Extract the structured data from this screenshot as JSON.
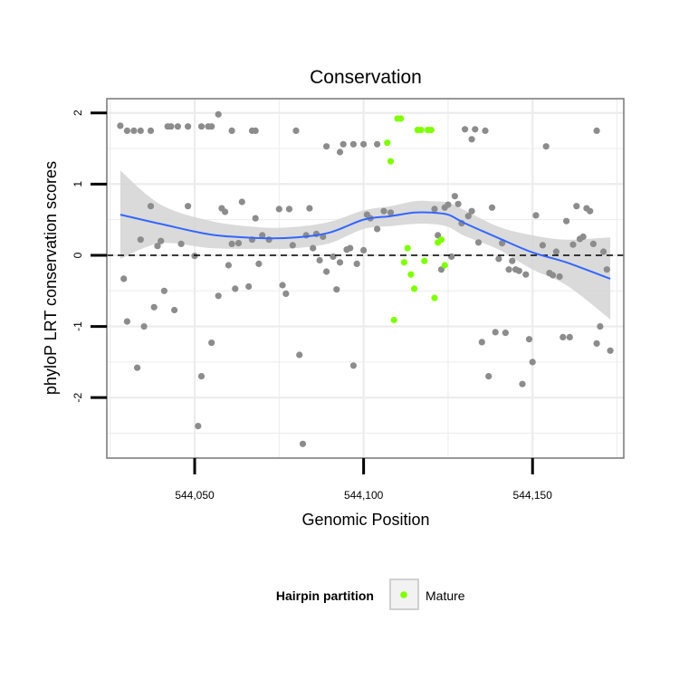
{
  "chart_data": {
    "type": "scatter",
    "title": "Conservation",
    "xlabel": "Genomic Position",
    "ylabel": "phyloP LRT conservation scores",
    "xlim": [
      544024,
      544177
    ],
    "ylim": [
      -2.85,
      2.2
    ],
    "x_ticks": [
      544050,
      544100,
      544150
    ],
    "x_tick_labels": [
      "544,050",
      "544,100",
      "544,150"
    ],
    "y_ticks": [
      -2,
      -1,
      0,
      1,
      2
    ],
    "y_tick_labels": [
      "-2",
      "-1",
      "0",
      "1",
      "2"
    ],
    "grid": true,
    "reference_line": {
      "y": 0,
      "style": "dashed",
      "color": "#000000"
    },
    "legend": {
      "title": "Hairpin partition",
      "placement": "bottom",
      "entries": [
        {
          "label": "Mature",
          "color": "#7fff00"
        }
      ]
    },
    "colors": {
      "other": "#8c8c8c",
      "mature": "#7fff00",
      "smooth": "#3366ff",
      "ribbon": "#d3d3d3",
      "panel_grid": "#ececec"
    },
    "series": [
      {
        "name": "",
        "color": "#8c8c8c",
        "points": [
          [
            544028,
            1.82
          ],
          [
            544030,
            1.75
          ],
          [
            544032,
            1.75
          ],
          [
            544034,
            1.75
          ],
          [
            544037,
            1.75
          ],
          [
            544042,
            1.81
          ],
          [
            544043,
            1.81
          ],
          [
            544045,
            1.81
          ],
          [
            544048,
            1.81
          ],
          [
            544052,
            1.81
          ],
          [
            544054,
            1.81
          ],
          [
            544055,
            1.81
          ],
          [
            544057,
            1.98
          ],
          [
            544061,
            1.75
          ],
          [
            544067,
            1.75
          ],
          [
            544068,
            1.75
          ],
          [
            544080,
            1.75
          ],
          [
            544089,
            1.53
          ],
          [
            544093,
            1.45
          ],
          [
            544094,
            1.56
          ],
          [
            544097,
            1.56
          ],
          [
            544100,
            1.56
          ],
          [
            544104,
            1.56
          ],
          [
            544130,
            1.77
          ],
          [
            544132,
            1.63
          ],
          [
            544133,
            1.77
          ],
          [
            544136,
            1.75
          ],
          [
            544154,
            1.53
          ],
          [
            544169,
            1.75
          ],
          [
            544029,
            -0.33
          ],
          [
            544030,
            -0.93
          ],
          [
            544033,
            -1.58
          ],
          [
            544034,
            0.22
          ],
          [
            544035,
            -1.0
          ],
          [
            544037,
            0.69
          ],
          [
            544038,
            -0.73
          ],
          [
            544039,
            0.13
          ],
          [
            544040,
            0.2
          ],
          [
            544041,
            -0.5
          ],
          [
            544044,
            -0.77
          ],
          [
            544046,
            0.16
          ],
          [
            544048,
            0.69
          ],
          [
            544050,
            -0.01
          ],
          [
            544051,
            -2.4
          ],
          [
            544052,
            -1.7
          ],
          [
            544055,
            -1.23
          ],
          [
            544057,
            -0.57
          ],
          [
            544058,
            0.66
          ],
          [
            544059,
            0.61
          ],
          [
            544060,
            -0.14
          ],
          [
            544061,
            0.16
          ],
          [
            544062,
            -0.47
          ],
          [
            544063,
            0.17
          ],
          [
            544064,
            0.75
          ],
          [
            544066,
            -0.44
          ],
          [
            544067,
            0.22
          ],
          [
            544068,
            0.52
          ],
          [
            544069,
            -0.12
          ],
          [
            544070,
            0.28
          ],
          [
            544072,
            0.22
          ],
          [
            544075,
            0.65
          ],
          [
            544076,
            -0.42
          ],
          [
            544077,
            -0.54
          ],
          [
            544078,
            0.65
          ],
          [
            544079,
            0.14
          ],
          [
            544081,
            -1.4
          ],
          [
            544082,
            -2.65
          ],
          [
            544083,
            0.28
          ],
          [
            544084,
            0.66
          ],
          [
            544085,
            0.1
          ],
          [
            544086,
            0.3
          ],
          [
            544087,
            -0.07
          ],
          [
            544088,
            0.26
          ],
          [
            544089,
            -0.23
          ],
          [
            544091,
            -0.02
          ],
          [
            544092,
            -0.48
          ],
          [
            544093,
            -0.1
          ],
          [
            544095,
            0.08
          ],
          [
            544096,
            0.1
          ],
          [
            544097,
            -1.55
          ],
          [
            544098,
            -0.12
          ],
          [
            544100,
            0.07
          ],
          [
            544101,
            0.57
          ],
          [
            544102,
            0.52
          ],
          [
            544104,
            0.37
          ],
          [
            544106,
            0.62
          ],
          [
            544108,
            0.6
          ],
          [
            544121,
            0.65
          ],
          [
            544122,
            0.28
          ],
          [
            544123,
            -0.2
          ],
          [
            544124,
            0.67
          ],
          [
            544125,
            0.71
          ],
          [
            544126,
            -0.02
          ],
          [
            544127,
            0.83
          ],
          [
            544128,
            0.72
          ],
          [
            544129,
            0.45
          ],
          [
            544131,
            0.55
          ],
          [
            544132,
            0.62
          ],
          [
            544134,
            0.18
          ],
          [
            544135,
            -1.22
          ],
          [
            544137,
            -1.7
          ],
          [
            544138,
            0.67
          ],
          [
            544139,
            -1.08
          ],
          [
            544140,
            -0.05
          ],
          [
            544141,
            0.17
          ],
          [
            544142,
            -1.09
          ],
          [
            544143,
            -0.2
          ],
          [
            544144,
            -0.08
          ],
          [
            544145,
            -0.2
          ],
          [
            544146,
            -0.22
          ],
          [
            544147,
            -1.81
          ],
          [
            544148,
            -0.27
          ],
          [
            544149,
            -1.18
          ],
          [
            544150,
            -1.5
          ],
          [
            544151,
            0.56
          ],
          [
            544153,
            0.14
          ],
          [
            544155,
            -0.25
          ],
          [
            544156,
            -0.28
          ],
          [
            544157,
            0.05
          ],
          [
            544158,
            -0.3
          ],
          [
            544159,
            -1.15
          ],
          [
            544160,
            0.48
          ],
          [
            544161,
            -1.15
          ],
          [
            544162,
            0.15
          ],
          [
            544163,
            0.69
          ],
          [
            544164,
            0.23
          ],
          [
            544165,
            0.26
          ],
          [
            544166,
            0.66
          ],
          [
            544167,
            0.62
          ],
          [
            544168,
            0.16
          ],
          [
            544169,
            -1.24
          ],
          [
            544170,
            -1.0
          ],
          [
            544171,
            0.05
          ],
          [
            544172,
            -0.2
          ],
          [
            544173,
            -1.34
          ]
        ]
      },
      {
        "name": "Mature",
        "color": "#7fff00",
        "points": [
          [
            544107,
            1.58
          ],
          [
            544108,
            1.32
          ],
          [
            544109,
            -0.91
          ],
          [
            544110,
            1.92
          ],
          [
            544111,
            1.92
          ],
          [
            544112,
            -0.1
          ],
          [
            544113,
            0.1
          ],
          [
            544114,
            -0.27
          ],
          [
            544115,
            -0.47
          ],
          [
            544116,
            1.76
          ],
          [
            544117,
            1.76
          ],
          [
            544118,
            -0.08
          ],
          [
            544119,
            1.76
          ],
          [
            544120,
            1.76
          ],
          [
            544121,
            -0.6
          ],
          [
            544122,
            0.18
          ],
          [
            544123,
            0.22
          ],
          [
            544124,
            -0.14
          ]
        ]
      }
    ],
    "smooth": {
      "name": "",
      "color": "#3366ff",
      "x": [
        544028,
        544040,
        544055,
        544070,
        544080,
        544090,
        544100,
        544108,
        544115,
        544120,
        544125,
        544130,
        544140,
        544150,
        544160,
        544173
      ],
      "y": [
        0.57,
        0.44,
        0.29,
        0.24,
        0.25,
        0.32,
        0.5,
        0.55,
        0.6,
        0.6,
        0.57,
        0.45,
        0.24,
        0.04,
        -0.1,
        -0.33
      ],
      "lower": [
        -0.05,
        0.17,
        0.1,
        0.09,
        0.1,
        0.17,
        0.37,
        0.41,
        0.44,
        0.44,
        0.4,
        0.27,
        0.08,
        -0.2,
        -0.42,
        -0.9
      ],
      "upper": [
        1.19,
        0.71,
        0.48,
        0.39,
        0.4,
        0.47,
        0.63,
        0.69,
        0.76,
        0.76,
        0.74,
        0.63,
        0.4,
        0.28,
        0.22,
        0.25
      ]
    }
  }
}
